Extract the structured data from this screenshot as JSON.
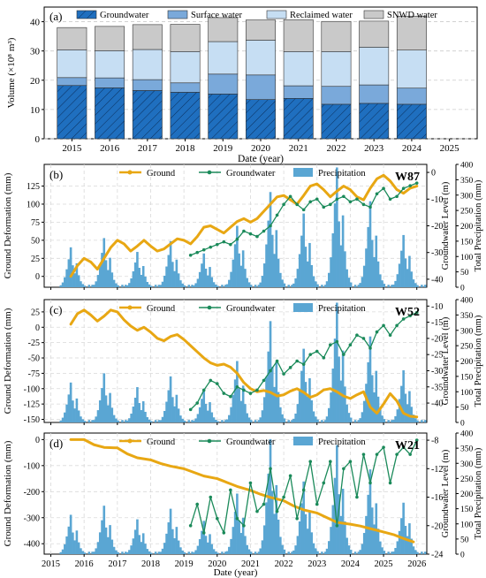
{
  "figure": {
    "panels": [
      "(a)",
      "(b)",
      "(c)",
      "(d)"
    ]
  },
  "chart_data": [
    {
      "type": "bar",
      "stacked": true,
      "panel_label": "(a)",
      "categories": [
        "2015",
        "2016",
        "2017",
        "2018",
        "2019",
        "2020",
        "2021",
        "2022",
        "2023",
        "2024",
        "2025"
      ],
      "series": [
        {
          "name": "Groundwater",
          "color": "#1f6fbf",
          "hatch": true,
          "values": [
            18.2,
            17.4,
            16.5,
            15.9,
            15.3,
            13.4,
            13.8,
            11.8,
            12.1,
            11.8,
            null
          ]
        },
        {
          "name": "Surface water",
          "color": "#7aa9da",
          "values": [
            2.7,
            3.4,
            3.7,
            3.2,
            6.8,
            8.4,
            4.3,
            6.1,
            6.3,
            5.5,
            null
          ]
        },
        {
          "name": "Reclaimed water",
          "color": "#c6def3",
          "values": [
            9.5,
            9.3,
            10.3,
            10.7,
            11.1,
            11.9,
            11.7,
            11.9,
            12.9,
            13.0,
            null
          ]
        },
        {
          "name": "SNWD water",
          "color": "#c9c9c9",
          "values": [
            7.6,
            8.3,
            8.5,
            9.3,
            8.2,
            6.9,
            10.9,
            10.3,
            8.9,
            11.6,
            null
          ]
        }
      ],
      "legend_placement": "top",
      "xlabel": "Date (year)",
      "ylabel": "Volume (×10⁸ m³)",
      "ylim": [
        0,
        45
      ],
      "yticks": [
        0,
        10,
        20,
        30,
        40
      ],
      "grid": true
    },
    {
      "type": "line",
      "panel_label": "(b)",
      "well": "W87",
      "legend": [
        "Ground",
        "Groundwater",
        "Precipitation"
      ],
      "ylabel": "Ground Deformation (mm)",
      "ylabel_right": "Groundwater Level (m)",
      "ylabel_precip": "Total Precipitation (mm)",
      "xlim": [
        2014.8,
        2026.3
      ],
      "ylim": [
        -15,
        155
      ],
      "yticks": [
        0,
        25,
        50,
        75,
        100,
        125
      ],
      "y2lim": [
        -43,
        3
      ],
      "y2ticks": [
        0,
        -10,
        -20,
        -30,
        -40
      ],
      "series": [
        {
          "name": "Ground",
          "color": "#e8a713",
          "axis": "left",
          "x": [
            2015.6,
            2015.8,
            2016.0,
            2016.2,
            2016.4,
            2016.6,
            2016.8,
            2017.0,
            2017.2,
            2017.4,
            2017.6,
            2017.8,
            2018.0,
            2018.2,
            2018.4,
            2018.6,
            2018.8,
            2019.0,
            2019.2,
            2019.4,
            2019.6,
            2019.8,
            2020.0,
            2020.2,
            2020.4,
            2020.6,
            2020.8,
            2021.0,
            2021.2,
            2021.4,
            2021.6,
            2021.8,
            2022.0,
            2022.2,
            2022.4,
            2022.6,
            2022.8,
            2023.0,
            2023.2,
            2023.4,
            2023.6,
            2023.8,
            2024.0,
            2024.2,
            2024.4,
            2024.6,
            2024.8,
            2025.0,
            2025.2,
            2025.4,
            2025.6,
            2025.8,
            2026.0
          ],
          "y": [
            0,
            15,
            25,
            20,
            10,
            25,
            40,
            50,
            45,
            35,
            42,
            50,
            42,
            35,
            38,
            45,
            52,
            50,
            45,
            55,
            68,
            70,
            65,
            60,
            68,
            76,
            80,
            75,
            80,
            90,
            100,
            110,
            112,
            106,
            100,
            112,
            125,
            128,
            120,
            110,
            118,
            125,
            120,
            110,
            106,
            122,
            135,
            140,
            132,
            120,
            115,
            122,
            125
          ]
        },
        {
          "name": "Groundwater",
          "color": "#1b8a5a",
          "axis": "right",
          "x": [
            2019.2,
            2019.4,
            2019.6,
            2019.8,
            2020.0,
            2020.2,
            2020.4,
            2020.6,
            2020.8,
            2021.0,
            2021.2,
            2021.4,
            2021.6,
            2021.8,
            2022.0,
            2022.2,
            2022.4,
            2022.6,
            2022.8,
            2023.0,
            2023.2,
            2023.4,
            2023.6,
            2023.8,
            2024.0,
            2024.2,
            2024.4,
            2024.6,
            2024.8,
            2025.0,
            2025.2,
            2025.4,
            2025.6,
            2025.8,
            2026.0
          ],
          "y": [
            -31,
            -30,
            -29,
            -28,
            -27,
            -26,
            -27,
            -25,
            -22,
            -23,
            -24,
            -22,
            -20,
            -16,
            -12,
            -9,
            -12,
            -14,
            -11,
            -10,
            -13,
            -12,
            -10,
            -9,
            -11,
            -10,
            -12,
            -13,
            -8,
            -6,
            -10,
            -9,
            -6,
            -5,
            -4
          ]
        },
        {
          "name": "Precipitation",
          "color": "#5aa6d3",
          "axis": "precip",
          "peaks": [
            [
              2015.6,
              130
            ],
            [
              2016.6,
              160
            ],
            [
              2017.6,
              115
            ],
            [
              2018.6,
              150
            ],
            [
              2019.6,
              110
            ],
            [
              2020.6,
              200
            ],
            [
              2021.6,
              310
            ],
            [
              2022.6,
              240
            ],
            [
              2023.6,
              390
            ],
            [
              2024.6,
              280
            ],
            [
              2025.6,
              170
            ]
          ]
        }
      ],
      "grid": true
    },
    {
      "type": "line",
      "panel_label": "(c)",
      "well": "W52",
      "legend": [
        "Ground",
        "Groundwater",
        "Precipitation"
      ],
      "ylabel": "Ground Deformation (mm)",
      "ylabel_right": "Groundwater Level (m)",
      "ylabel_precip": "Total Precipitation (mm)",
      "xlim": [
        2014.8,
        2026.3
      ],
      "ylim": [
        -155,
        45
      ],
      "yticks": [
        -150,
        -125,
        -100,
        -75,
        -50,
        -25,
        0,
        25
      ],
      "y2lim": [
        -46,
        -8
      ],
      "y2ticks": [
        -10,
        -15,
        -20,
        -25,
        -30,
        -35,
        -40
      ],
      "series": [
        {
          "name": "Ground",
          "color": "#e8a713",
          "axis": "left",
          "x": [
            2015.6,
            2015.8,
            2016.0,
            2016.2,
            2016.4,
            2016.6,
            2016.8,
            2017.0,
            2017.2,
            2017.4,
            2017.6,
            2017.8,
            2018.0,
            2018.2,
            2018.4,
            2018.6,
            2018.8,
            2019.0,
            2019.2,
            2019.4,
            2019.6,
            2019.8,
            2020.0,
            2020.2,
            2020.4,
            2020.6,
            2020.8,
            2021.0,
            2021.2,
            2021.4,
            2021.6,
            2021.8,
            2022.0,
            2022.2,
            2022.4,
            2022.6,
            2022.8,
            2023.0,
            2023.2,
            2023.4,
            2023.6,
            2023.8,
            2024.0,
            2024.2,
            2024.4,
            2024.6,
            2024.8,
            2025.0,
            2025.2,
            2025.4,
            2025.6,
            2025.8,
            2026.0
          ],
          "y": [
            5,
            22,
            28,
            20,
            10,
            18,
            28,
            25,
            12,
            2,
            -5,
            0,
            -8,
            -18,
            -22,
            -15,
            -12,
            -20,
            -30,
            -40,
            -50,
            -58,
            -62,
            -60,
            -65,
            -75,
            -90,
            -100,
            -105,
            -103,
            -106,
            -112,
            -110,
            -104,
            -100,
            -106,
            -114,
            -110,
            -102,
            -100,
            -105,
            -112,
            -116,
            -110,
            -105,
            -130,
            -140,
            -125,
            -108,
            -120,
            -140,
            -145,
            -146
          ]
        },
        {
          "name": "Groundwater",
          "color": "#1b8a5a",
          "axis": "right",
          "x": [
            2019.2,
            2019.4,
            2019.6,
            2019.8,
            2020.0,
            2020.2,
            2020.4,
            2020.6,
            2020.8,
            2021.0,
            2021.2,
            2021.4,
            2021.6,
            2021.8,
            2022.0,
            2022.2,
            2022.4,
            2022.6,
            2022.8,
            2023.0,
            2023.2,
            2023.4,
            2023.6,
            2023.8,
            2024.0,
            2024.2,
            2024.4,
            2024.6,
            2024.8,
            2025.0,
            2025.2,
            2025.4,
            2025.6,
            2025.8,
            2026.0
          ],
          "y": [
            -42,
            -40,
            -36,
            -33,
            -34,
            -37,
            -38,
            -35,
            -36,
            -37,
            -36,
            -33,
            -30,
            -27,
            -31,
            -29,
            -27,
            -28,
            -25,
            -24,
            -26,
            -22,
            -21,
            -25,
            -22,
            -19,
            -20,
            -23,
            -18,
            -16,
            -19,
            -16,
            -14,
            -13,
            -12
          ]
        },
        {
          "name": "Precipitation",
          "color": "#5aa6d3",
          "axis": "precip",
          "peaks": [
            [
              2015.6,
              130
            ],
            [
              2016.6,
              160
            ],
            [
              2017.6,
              115
            ],
            [
              2018.6,
              150
            ],
            [
              2019.6,
              110
            ],
            [
              2020.6,
              200
            ],
            [
              2021.6,
              330
            ],
            [
              2022.6,
              240
            ],
            [
              2023.6,
              390
            ],
            [
              2024.6,
              280
            ],
            [
              2025.6,
              170
            ]
          ]
        }
      ],
      "grid": true
    },
    {
      "type": "line",
      "panel_label": "(d)",
      "well": "W21",
      "legend": [
        "Ground",
        "Groundwater",
        "Precipitation"
      ],
      "ylabel": "Ground Deformation (mm)",
      "ylabel_right": "Groundwater Level (m)",
      "ylabel_precip": "Total Precipitation (mm)",
      "xlabel": "Date (year)",
      "xlim": [
        2014.8,
        2026.3
      ],
      "xticks": [
        2015,
        2016,
        2017,
        2018,
        2019,
        2020,
        2021,
        2022,
        2023,
        2024,
        2025,
        2026
      ],
      "ylim": [
        -440,
        25
      ],
      "yticks": [
        -400,
        -300,
        -200,
        -100,
        0
      ],
      "y2lim": [
        -24,
        -7
      ],
      "y2ticks": [
        -8,
        -12,
        -16,
        -20,
        -24
      ],
      "series": [
        {
          "name": "Ground",
          "color": "#e8a713",
          "axis": "left",
          "x": [
            2015.6,
            2016.0,
            2016.3,
            2016.6,
            2017.0,
            2017.3,
            2017.6,
            2018.0,
            2018.3,
            2018.6,
            2019.0,
            2019.3,
            2019.6,
            2020.0,
            2020.3,
            2020.6,
            2021.0,
            2021.3,
            2021.6,
            2022.0,
            2022.3,
            2022.6,
            2023.0,
            2023.3,
            2023.6,
            2024.0,
            2024.3,
            2024.6,
            2025.0,
            2025.3,
            2025.6,
            2025.9
          ],
          "y": [
            0,
            0,
            -20,
            -30,
            -32,
            -55,
            -70,
            -78,
            -92,
            -102,
            -112,
            -126,
            -140,
            -150,
            -165,
            -180,
            -195,
            -210,
            -222,
            -235,
            -255,
            -270,
            -282,
            -300,
            -318,
            -325,
            -332,
            -342,
            -355,
            -365,
            -380,
            -393
          ]
        },
        {
          "name": "Groundwater",
          "color": "#1b8a5a",
          "axis": "right",
          "x": [
            2019.2,
            2019.4,
            2019.6,
            2019.8,
            2020.0,
            2020.2,
            2020.4,
            2020.6,
            2020.8,
            2021.0,
            2021.2,
            2021.4,
            2021.6,
            2021.8,
            2022.0,
            2022.2,
            2022.4,
            2022.6,
            2022.8,
            2023.0,
            2023.2,
            2023.4,
            2023.6,
            2023.8,
            2024.0,
            2024.2,
            2024.4,
            2024.6,
            2024.8,
            2025.0,
            2025.2,
            2025.4,
            2025.6,
            2025.8,
            2026.0
          ],
          "y": [
            -20,
            -17,
            -21,
            -16,
            -19,
            -21,
            -15,
            -19,
            -20,
            -14,
            -18,
            -17,
            -12,
            -18,
            -16,
            -13,
            -19,
            -15,
            -11,
            -17,
            -14,
            -11,
            -20,
            -12,
            -11,
            -16,
            -10,
            -14,
            -10,
            -9,
            -14,
            -10,
            -9,
            -10,
            -8
          ]
        },
        {
          "name": "Precipitation",
          "color": "#5aa6d3",
          "axis": "precip",
          "peaks": [
            [
              2015.6,
              130
            ],
            [
              2016.6,
              160
            ],
            [
              2017.6,
              115
            ],
            [
              2018.6,
              150
            ],
            [
              2019.6,
              110
            ],
            [
              2020.6,
              200
            ],
            [
              2021.6,
              380
            ],
            [
              2022.6,
              240
            ],
            [
              2023.6,
              360
            ],
            [
              2024.6,
              280
            ],
            [
              2025.6,
              170
            ]
          ]
        }
      ],
      "grid": true
    }
  ]
}
